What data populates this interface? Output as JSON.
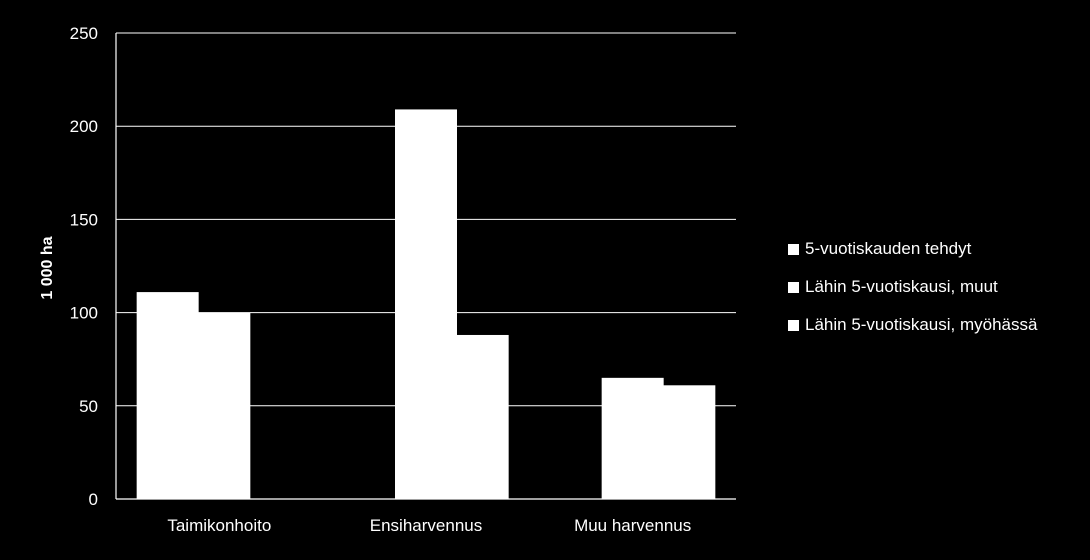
{
  "chart_data": {
    "type": "bar",
    "categories": [
      "Taimikonhoito",
      "Ensiharvennus",
      "Muu harvennus"
    ],
    "series": [
      {
        "name": "5-vuotiskauden tehdyt",
        "values": [
          111,
          null,
          null
        ]
      },
      {
        "name": "Lähin 5-vuotiskausi, muut",
        "values": [
          100,
          209,
          65
        ]
      },
      {
        "name": "Lähin 5-vuotiskausi, myöhässä",
        "values": [
          null,
          88,
          61
        ]
      }
    ],
    "title": "",
    "xlabel": "",
    "ylabel": "1 000 ha",
    "ylim": [
      0,
      250
    ],
    "yticks": [
      0,
      50,
      100,
      150,
      200,
      250
    ],
    "grid": true,
    "legend_position": "right",
    "bar_color": "#ffffff",
    "background": "#000000",
    "text_color": "#ffffff"
  }
}
